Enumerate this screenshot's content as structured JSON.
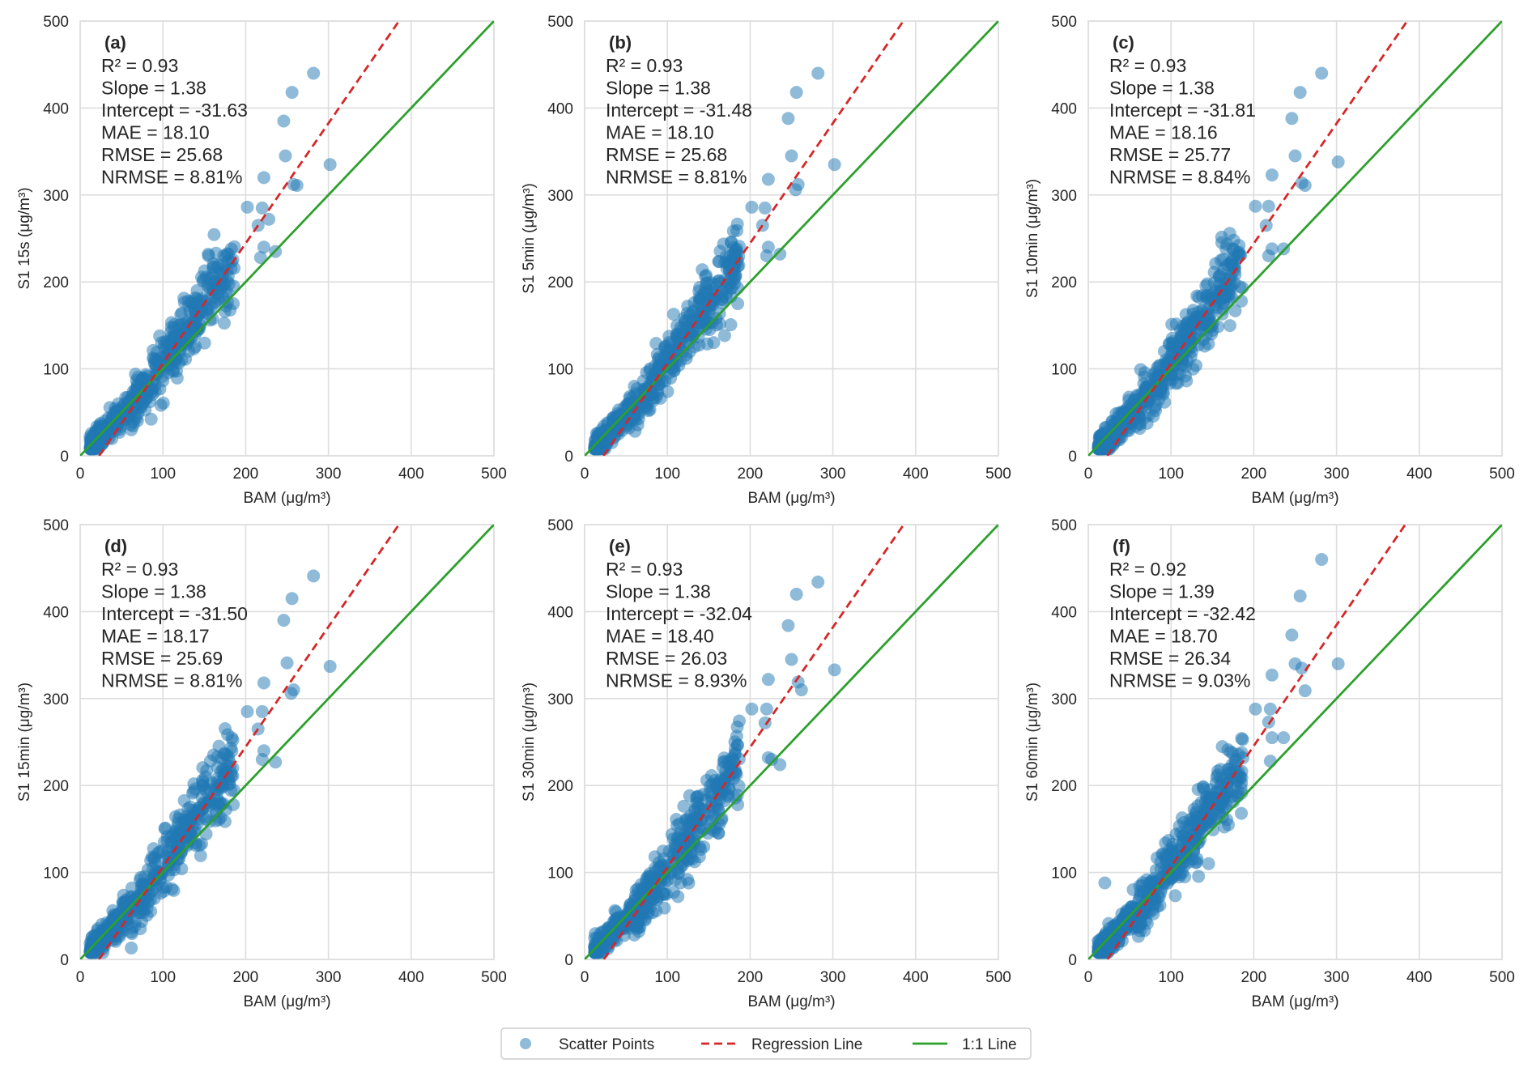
{
  "chart_data": [
    {
      "type": "scatter",
      "panel_label": "(a)",
      "xlabel": "BAM (μg/m³)",
      "ylabel": "S1 15s (μg/m³)",
      "xlim": [
        0,
        500
      ],
      "ylim": [
        0,
        500
      ],
      "xticks": [
        0,
        100,
        200,
        300,
        400,
        500
      ],
      "yticks": [
        0,
        100,
        200,
        300,
        400,
        500
      ],
      "grid": true,
      "stats": [
        "R² = 0.93",
        "Slope = 1.38",
        "Intercept = -31.63",
        "MAE = 18.10",
        "RMSE = 25.68",
        "NRMSE = 8.81%"
      ],
      "regression": {
        "slope": 1.38,
        "intercept": -31.63
      },
      "outliers": [
        [
          282,
          440
        ],
        [
          256,
          418
        ],
        [
          246,
          385
        ],
        [
          248,
          345
        ],
        [
          222,
          320
        ],
        [
          258,
          312
        ],
        [
          262,
          311
        ],
        [
          302,
          335
        ],
        [
          202,
          286
        ],
        [
          220,
          285
        ],
        [
          215,
          265
        ],
        [
          228,
          272
        ],
        [
          222,
          240
        ],
        [
          218,
          228
        ],
        [
          236,
          235
        ],
        [
          185,
          175
        ]
      ]
    },
    {
      "type": "scatter",
      "panel_label": "(b)",
      "xlabel": "BAM (μg/m³)",
      "ylabel": "S1 5min (μg/m³)",
      "xlim": [
        0,
        500
      ],
      "ylim": [
        0,
        500
      ],
      "xticks": [
        0,
        100,
        200,
        300,
        400,
        500
      ],
      "yticks": [
        0,
        100,
        200,
        300,
        400,
        500
      ],
      "grid": true,
      "stats": [
        "R² = 0.93",
        "Slope = 1.38",
        "Intercept = -31.48",
        "MAE = 18.10",
        "RMSE = 25.68",
        "NRMSE = 8.81%"
      ],
      "regression": {
        "slope": 1.38,
        "intercept": -31.48
      },
      "outliers": [
        [
          282,
          440
        ],
        [
          256,
          418
        ],
        [
          246,
          388
        ],
        [
          250,
          345
        ],
        [
          222,
          318
        ],
        [
          258,
          312
        ],
        [
          255,
          306
        ],
        [
          302,
          335
        ],
        [
          202,
          286
        ],
        [
          218,
          285
        ],
        [
          215,
          265
        ],
        [
          222,
          240
        ],
        [
          220,
          230
        ],
        [
          236,
          232
        ],
        [
          185,
          175
        ]
      ]
    },
    {
      "type": "scatter",
      "panel_label": "(c)",
      "xlabel": "BAM (μg/m³)",
      "ylabel": "S1 10min (μg/m³)",
      "xlim": [
        0,
        500
      ],
      "ylim": [
        0,
        500
      ],
      "xticks": [
        0,
        100,
        200,
        300,
        400,
        500
      ],
      "yticks": [
        0,
        100,
        200,
        300,
        400,
        500
      ],
      "grid": true,
      "stats": [
        "R² = 0.93",
        "Slope = 1.38",
        "Intercept = -31.81",
        "MAE = 18.16",
        "RMSE = 25.77",
        "NRMSE = 8.84%"
      ],
      "regression": {
        "slope": 1.38,
        "intercept": -31.81
      },
      "outliers": [
        [
          282,
          440
        ],
        [
          256,
          418
        ],
        [
          246,
          388
        ],
        [
          250,
          345
        ],
        [
          222,
          323
        ],
        [
          258,
          314
        ],
        [
          262,
          311
        ],
        [
          302,
          338
        ],
        [
          202,
          287
        ],
        [
          218,
          287
        ],
        [
          215,
          265
        ],
        [
          222,
          238
        ],
        [
          218,
          230
        ],
        [
          236,
          238
        ],
        [
          185,
          178
        ]
      ]
    },
    {
      "type": "scatter",
      "panel_label": "(d)",
      "xlabel": "BAM (μg/m³)",
      "ylabel": "S1 15min (μg/m³)",
      "xlim": [
        0,
        500
      ],
      "ylim": [
        0,
        500
      ],
      "xticks": [
        0,
        100,
        200,
        300,
        400,
        500
      ],
      "yticks": [
        0,
        100,
        200,
        300,
        400,
        500
      ],
      "grid": true,
      "stats": [
        "R² = 0.93",
        "Slope = 1.38",
        "Intercept = -31.50",
        "MAE = 18.17",
        "RMSE = 25.69",
        "NRMSE = 8.81%"
      ],
      "regression": {
        "slope": 1.38,
        "intercept": -31.5
      },
      "outliers": [
        [
          282,
          441
        ],
        [
          256,
          415
        ],
        [
          246,
          390
        ],
        [
          250,
          341
        ],
        [
          222,
          318
        ],
        [
          258,
          310
        ],
        [
          255,
          306
        ],
        [
          302,
          337
        ],
        [
          202,
          285
        ],
        [
          220,
          285
        ],
        [
          215,
          265
        ],
        [
          222,
          240
        ],
        [
          220,
          230
        ],
        [
          236,
          227
        ],
        [
          185,
          178
        ]
      ]
    },
    {
      "type": "scatter",
      "panel_label": "(e)",
      "xlabel": "BAM (μg/m³)",
      "ylabel": "S1 30min (μg/m³)",
      "xlim": [
        0,
        500
      ],
      "ylim": [
        0,
        500
      ],
      "xticks": [
        0,
        100,
        200,
        300,
        400,
        500
      ],
      "yticks": [
        0,
        100,
        200,
        300,
        400,
        500
      ],
      "grid": true,
      "stats": [
        "R² = 0.93",
        "Slope = 1.38",
        "Intercept = -32.04",
        "MAE = 18.40",
        "RMSE = 26.03",
        "NRMSE = 8.93%"
      ],
      "regression": {
        "slope": 1.38,
        "intercept": -32.04
      },
      "outliers": [
        [
          282,
          434
        ],
        [
          256,
          420
        ],
        [
          246,
          384
        ],
        [
          250,
          345
        ],
        [
          222,
          322
        ],
        [
          258,
          319
        ],
        [
          262,
          310
        ],
        [
          302,
          333
        ],
        [
          202,
          288
        ],
        [
          220,
          288
        ],
        [
          218,
          272
        ],
        [
          222,
          232
        ],
        [
          226,
          230
        ],
        [
          236,
          224
        ],
        [
          185,
          178
        ]
      ]
    },
    {
      "type": "scatter",
      "panel_label": "(f)",
      "xlabel": "BAM (μg/m³)",
      "ylabel": "S1 60min (μg/m³)",
      "xlim": [
        0,
        500
      ],
      "ylim": [
        0,
        500
      ],
      "xticks": [
        0,
        100,
        200,
        300,
        400,
        500
      ],
      "yticks": [
        0,
        100,
        200,
        300,
        400,
        500
      ],
      "grid": true,
      "stats": [
        "R² = 0.92",
        "Slope = 1.39",
        "Intercept = -32.42",
        "MAE = 18.70",
        "RMSE = 26.34",
        "NRMSE = 9.03%"
      ],
      "regression": {
        "slope": 1.39,
        "intercept": -32.42
      },
      "outliers": [
        [
          282,
          460
        ],
        [
          256,
          418
        ],
        [
          246,
          373
        ],
        [
          250,
          340
        ],
        [
          222,
          327
        ],
        [
          258,
          335
        ],
        [
          262,
          309
        ],
        [
          302,
          340
        ],
        [
          202,
          288
        ],
        [
          220,
          288
        ],
        [
          218,
          273
        ],
        [
          222,
          255
        ],
        [
          236,
          255
        ],
        [
          220,
          228
        ],
        [
          185,
          168
        ],
        [
          20,
          88
        ]
      ]
    }
  ],
  "legend": {
    "position": "bottom-center",
    "items": [
      {
        "label": "Scatter Points",
        "kind": "marker",
        "color": "#1f77b4"
      },
      {
        "label": "Regression Line",
        "kind": "dashed-line",
        "color": "#d62728"
      },
      {
        "label": "1:1 Line",
        "kind": "solid-line",
        "color": "#2ca02c"
      }
    ]
  },
  "colors": {
    "points": "#1f77b4",
    "regression": "#d62728",
    "identity": "#2ca02c",
    "grid": "#dddddd"
  }
}
